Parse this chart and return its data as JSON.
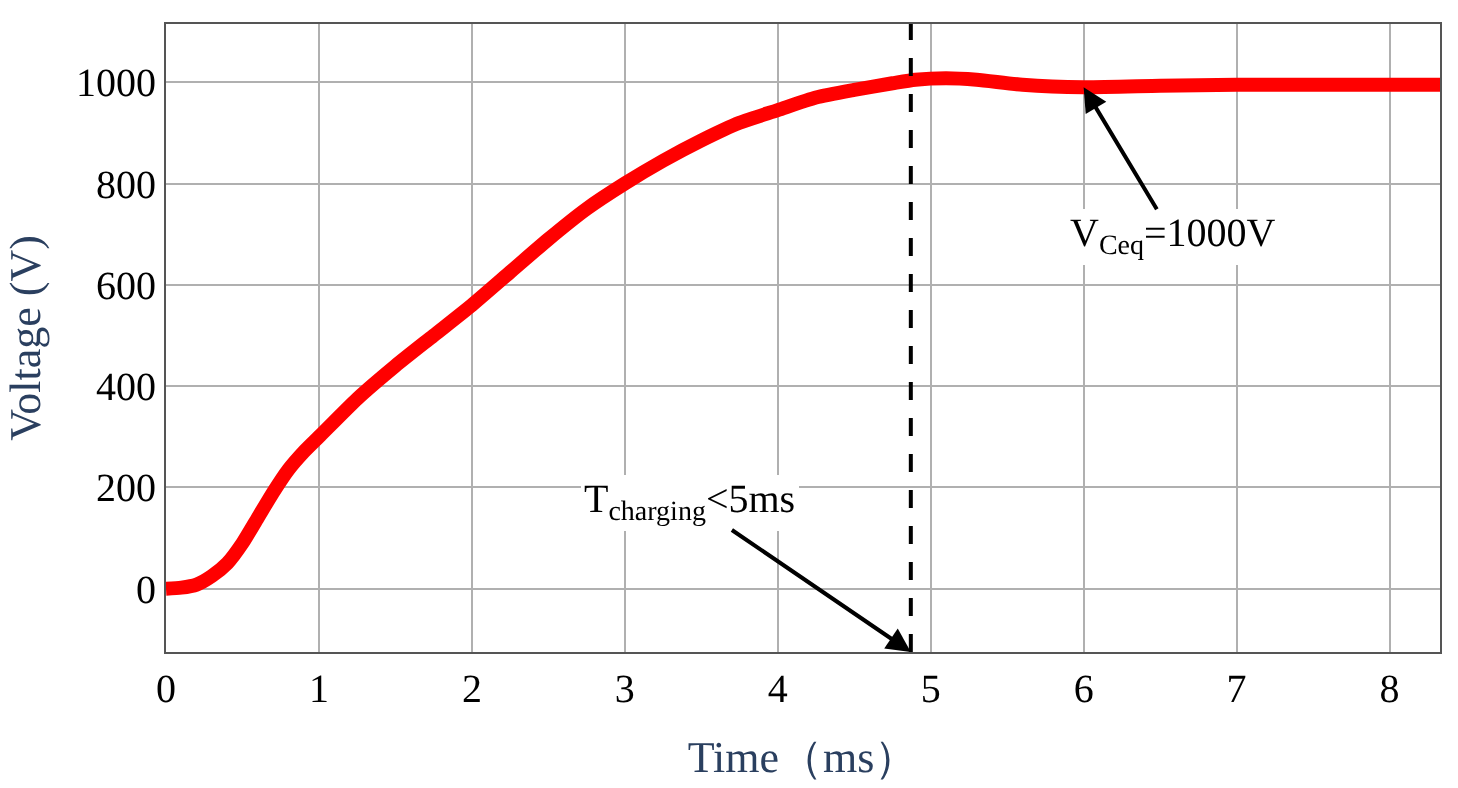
{
  "chart_data": {
    "type": "line",
    "xlabel": "Time（ms）",
    "ylabel": "Voltage (V)",
    "x": [
      0,
      0.1,
      0.2,
      0.3,
      0.4,
      0.5,
      0.6,
      0.7,
      0.8,
      0.9,
      1.0,
      1.25,
      1.5,
      1.75,
      2.0,
      2.25,
      2.5,
      2.75,
      3.0,
      3.25,
      3.5,
      3.75,
      4.0,
      4.25,
      4.5,
      4.75,
      4.9,
      5.1,
      5.3,
      5.6,
      6.0,
      6.5,
      7.0,
      7.5,
      8.0,
      8.33
    ],
    "series": [
      {
        "color": "#ff0000",
        "values": [
          0,
          2,
          8,
          25,
          50,
          90,
          140,
          190,
          235,
          270,
          300,
          375,
          440,
          500,
          560,
          625,
          690,
          750,
          800,
          845,
          885,
          920,
          945,
          970,
          985,
          998,
          1005,
          1008,
          1005,
          995,
          990,
          993,
          995,
          995,
          995,
          995
        ]
      }
    ],
    "xlim": [
      0,
      8.33
    ],
    "ylim": [
      -125,
      1115
    ],
    "xticks": [
      0,
      1,
      2,
      3,
      4,
      5,
      6,
      7,
      8
    ],
    "yticks": [
      0,
      200,
      400,
      600,
      800,
      1000
    ],
    "grid": true,
    "marker": "none",
    "line_style": "solid",
    "ref_lines": [
      {
        "axis": "x",
        "value": 4.87,
        "color": "#000000",
        "line_style": "dashed"
      }
    ],
    "annotations": [
      {
        "text": "T$_{charging}$<5ms",
        "x": 4.87,
        "y": -125
      },
      {
        "text": "V$_{Ceq}$=1000V",
        "x": 6.0,
        "y": 990
      }
    ]
  }
}
